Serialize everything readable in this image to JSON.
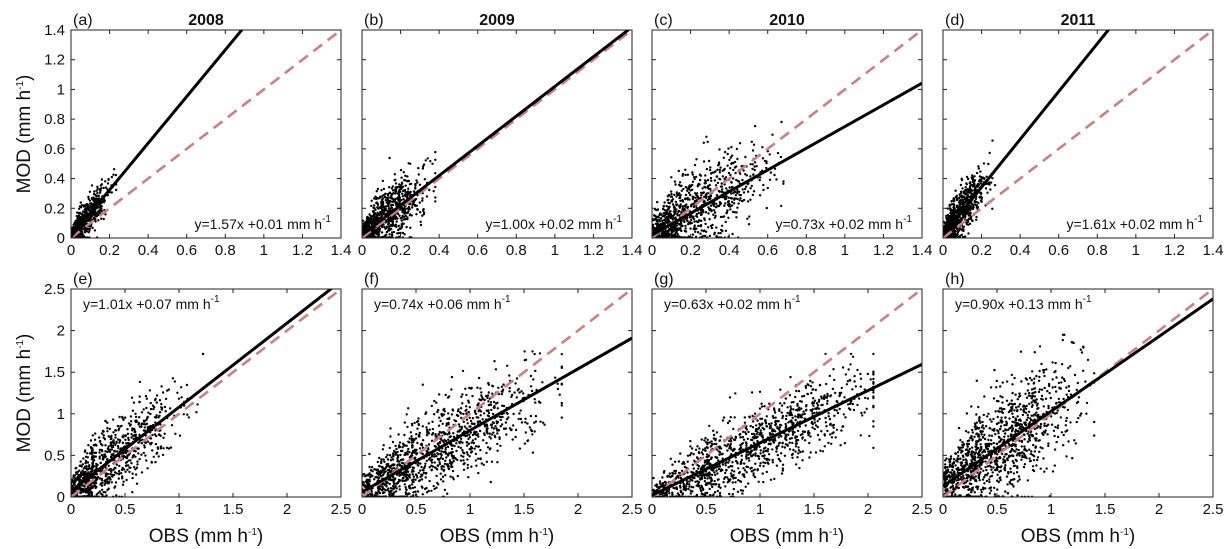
{
  "colors": {
    "points": "#000000",
    "fit": "#000000",
    "one_to_one": "#c98080"
  },
  "chart_data": [
    {
      "type": "scatter",
      "panel": "(a)",
      "title": "2008",
      "xlabel": "",
      "ylabel": "MOD (mm h",
      "ylabel_sup": "-1",
      "ylabel_end": ")",
      "xlim": [
        0,
        1.4
      ],
      "ylim": [
        0,
        1.4
      ],
      "xticks": [
        "0",
        "0.2",
        "0.4",
        "0.6",
        "0.8",
        "1",
        "1.2",
        "1.4"
      ],
      "yticks": [
        "0",
        "0.2",
        "0.4",
        "0.6",
        "0.8",
        "1",
        "1.2",
        "1.4"
      ],
      "equation": "y=1.57x +0.01 mm h",
      "equation_sup": "-1",
      "equation_pos": "bottom-right",
      "fit": {
        "slope": 1.57,
        "intercept": 0.01
      },
      "points_summary": {
        "n": 700,
        "x_mean": 0.08,
        "x_sd": 0.055,
        "y_noise": 0.06,
        "x_max": 0.25,
        "y_max": 0.78
      }
    },
    {
      "type": "scatter",
      "panel": "(b)",
      "title": "2009",
      "xlabel": "",
      "ylabel": "",
      "xlim": [
        0,
        1.4
      ],
      "ylim": [
        0,
        1.4
      ],
      "xticks": [
        "0",
        "0.2",
        "0.4",
        "0.6",
        "0.8",
        "1",
        "1.2",
        "1.4"
      ],
      "yticks": [],
      "equation": "y=1.00x +0.02 mm h",
      "equation_sup": "-1",
      "equation_pos": "bottom-right",
      "fit": {
        "slope": 1.0,
        "intercept": 0.02
      },
      "points_summary": {
        "n": 900,
        "x_mean": 0.15,
        "x_sd": 0.09,
        "y_noise": 0.1,
        "x_max": 0.38,
        "y_max": 0.93
      }
    },
    {
      "type": "scatter",
      "panel": "(c)",
      "title": "2010",
      "xlabel": "",
      "ylabel": "",
      "xlim": [
        0,
        1.4
      ],
      "ylim": [
        0,
        1.4
      ],
      "xticks": [
        "0",
        "0.2",
        "0.4",
        "0.6",
        "0.8",
        "1",
        "1.2",
        "1.4"
      ],
      "yticks": [],
      "equation": "y=0.73x +0.02 mm h",
      "equation_sup": "-1",
      "equation_pos": "bottom-right",
      "fit": {
        "slope": 0.73,
        "intercept": 0.02
      },
      "points_summary": {
        "n": 1000,
        "x_mean": 0.25,
        "x_sd": 0.17,
        "y_noise": 0.14,
        "x_max": 0.95,
        "y_max": 1.0
      }
    },
    {
      "type": "scatter",
      "panel": "(d)",
      "title": "2011",
      "xlabel": "",
      "ylabel": "",
      "xlim": [
        0,
        1.4
      ],
      "ylim": [
        0,
        1.4
      ],
      "xticks": [
        "0",
        "0.2",
        "0.4",
        "0.6",
        "0.8",
        "1",
        "1.2",
        "1.4"
      ],
      "yticks": [],
      "equation": "y=1.61x +0.02 mm h",
      "equation_sup": "-1",
      "equation_pos": "bottom-right",
      "fit": {
        "slope": 1.61,
        "intercept": 0.02
      },
      "points_summary": {
        "n": 800,
        "x_mean": 0.1,
        "x_sd": 0.065,
        "y_noise": 0.08,
        "x_max": 0.27,
        "y_max": 0.94
      }
    },
    {
      "type": "scatter",
      "panel": "(e)",
      "title": "",
      "xlabel": "OBS (mm h",
      "xlabel_sup": "-1",
      "xlabel_end": ")",
      "ylabel": "MOD (mm h",
      "ylabel_sup": "-1",
      "ylabel_end": ")",
      "xlim": [
        0,
        2.5
      ],
      "ylim": [
        0,
        2.5
      ],
      "xticks": [
        "0",
        "0.5",
        "1",
        "1.5",
        "2",
        "2.5"
      ],
      "yticks": [
        "0",
        "0.5",
        "1",
        "1.5",
        "2",
        "2.5"
      ],
      "equation": "y=1.01x +0.07 mm h",
      "equation_sup": "-1",
      "equation_pos": "top-left",
      "fit": {
        "slope": 1.01,
        "intercept": 0.07
      },
      "points_summary": {
        "n": 900,
        "x_mean": 0.4,
        "x_sd": 0.28,
        "y_noise": 0.22,
        "x_max": 1.3,
        "y_max": 1.8
      }
    },
    {
      "type": "scatter",
      "panel": "(f)",
      "title": "",
      "xlabel": "OBS (mm h",
      "xlabel_sup": "-1",
      "xlabel_end": ")",
      "ylabel": "",
      "xlim": [
        0,
        2.5
      ],
      "ylim": [
        0,
        2.5
      ],
      "xticks": [
        "0",
        "0.5",
        "1",
        "1.5",
        "2",
        "2.5"
      ],
      "yticks": [],
      "equation": "y=0.74x +0.06 mm h",
      "equation_sup": "-1",
      "equation_pos": "top-left",
      "fit": {
        "slope": 0.74,
        "intercept": 0.06
      },
      "points_summary": {
        "n": 1200,
        "x_mean": 0.8,
        "x_sd": 0.42,
        "y_noise": 0.27,
        "x_max": 1.85,
        "y_max": 1.75
      }
    },
    {
      "type": "scatter",
      "panel": "(g)",
      "title": "",
      "xlabel": "OBS (mm h",
      "xlabel_sup": "-1",
      "xlabel_end": ")",
      "ylabel": "",
      "xlim": [
        0,
        2.5
      ],
      "ylim": [
        0,
        2.5
      ],
      "xticks": [
        "0",
        "0.5",
        "1",
        "1.5",
        "2",
        "2.5"
      ],
      "yticks": [],
      "equation": "y=0.63x +0.02 mm h",
      "equation_sup": "-1",
      "equation_pos": "top-left",
      "fit": {
        "slope": 0.63,
        "intercept": 0.02
      },
      "points_summary": {
        "n": 1200,
        "x_mean": 1.05,
        "x_sd": 0.5,
        "y_noise": 0.24,
        "x_max": 2.05,
        "y_max": 1.72
      }
    },
    {
      "type": "scatter",
      "panel": "(h)",
      "title": "",
      "xlabel": "OBS (mm h",
      "xlabel_sup": "-1",
      "xlabel_end": ")",
      "ylabel": "",
      "xlim": [
        0,
        2.5
      ],
      "ylim": [
        0,
        2.5
      ],
      "xticks": [
        "0",
        "0.5",
        "1",
        "1.5",
        "2",
        "2.5"
      ],
      "yticks": [],
      "equation": "y=0.90x +0.13 mm h",
      "equation_sup": "-1",
      "equation_pos": "top-left",
      "fit": {
        "slope": 0.9,
        "intercept": 0.13
      },
      "points_summary": {
        "n": 1200,
        "x_mean": 0.6,
        "x_sd": 0.3,
        "y_noise": 0.33,
        "x_max": 1.4,
        "y_max": 1.95
      }
    }
  ]
}
